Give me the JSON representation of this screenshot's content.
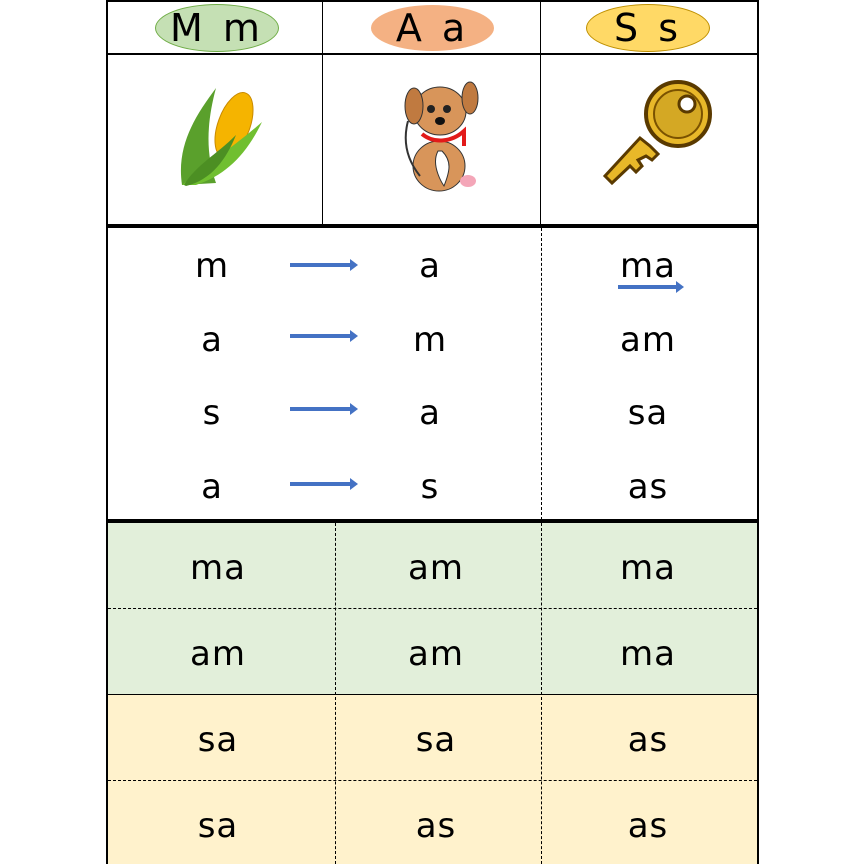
{
  "header": [
    {
      "label": "M m",
      "color": "#c5e0b4",
      "border": "#70ad47",
      "picture": "corn"
    },
    {
      "label": "A a",
      "color": "#f4b183",
      "border": "#f4b183",
      "picture": "dog"
    },
    {
      "label": "S s",
      "color": "#ffd966",
      "border": "#bf9000",
      "picture": "key"
    }
  ],
  "blending": [
    {
      "first": "m",
      "second": "a",
      "result": "ma",
      "underline_arrow": true
    },
    {
      "first": "a",
      "second": "m",
      "result": "am",
      "underline_arrow": false
    },
    {
      "first": "s",
      "second": "a",
      "result": "sa",
      "underline_arrow": false
    },
    {
      "first": "a",
      "second": "s",
      "result": "as",
      "underline_arrow": false
    }
  ],
  "practice": {
    "colors": {
      "green": "#e2efda",
      "yellow": "#fff2cc"
    },
    "rows": [
      {
        "bg": "green",
        "cells": [
          "ma",
          "am",
          "ma"
        ]
      },
      {
        "bg": "green",
        "cells": [
          "am",
          "am",
          "ma"
        ]
      },
      {
        "bg": "yellow",
        "cells": [
          "sa",
          "sa",
          "as"
        ]
      },
      {
        "bg": "yellow",
        "cells": [
          "sa",
          "as",
          "as"
        ]
      }
    ]
  },
  "arrow_color": "#4472c4"
}
